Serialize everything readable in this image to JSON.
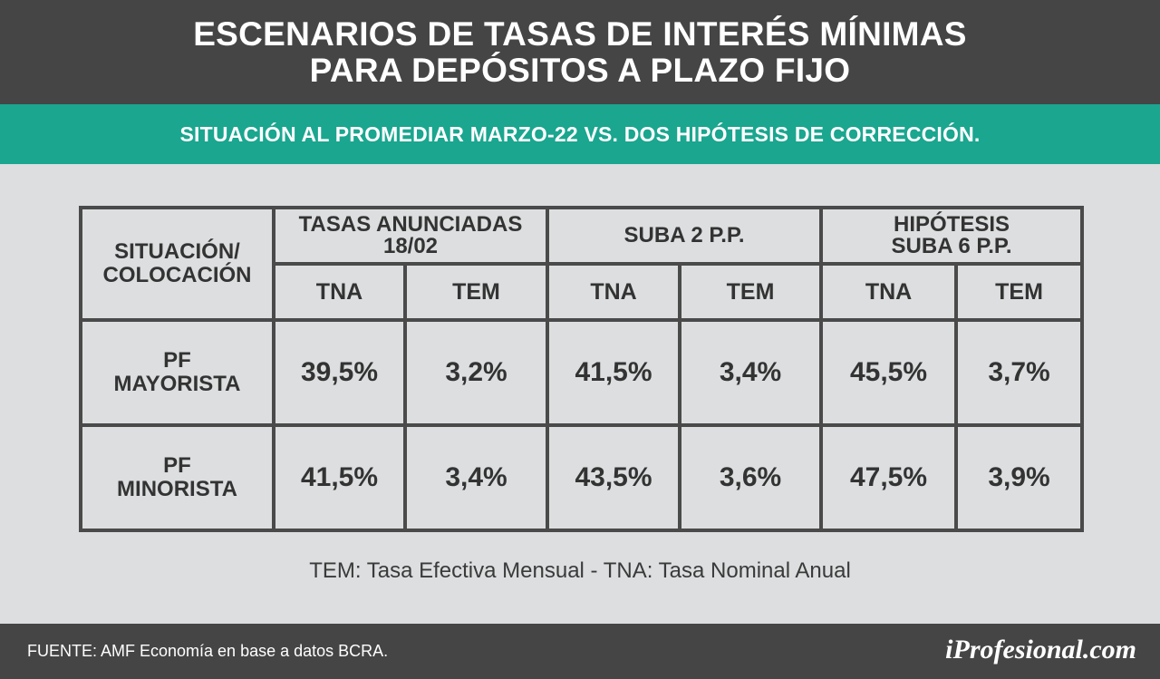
{
  "header": {
    "title_line1": "ESCENARIOS DE TASAS DE INTERÉS MÍNIMAS",
    "title_line2": "PARA DEPÓSITOS A PLAZO FIJO"
  },
  "subheader": {
    "text": "SITUACIÓN AL PROMEDIAR MARZO-22 VS. DOS HIPÓTESIS DE CORRECCIÓN."
  },
  "table": {
    "corner_line1": "SITUACIÓN/",
    "corner_line2": "COLOCACIÓN",
    "groups": [
      {
        "line1": "TASAS ANUNCIADAS",
        "line2": "18/02"
      },
      {
        "line1": "SUBA 2 P.P.",
        "line2": ""
      },
      {
        "line1": "HIPÓTESIS",
        "line2": "SUBA 6 P.P."
      }
    ],
    "subheaders": [
      "TNA",
      "TEM",
      "TNA",
      "TEM",
      "TNA",
      "TEM"
    ],
    "rows": [
      {
        "label_line1": "PF",
        "label_line2": "MAYORISTA",
        "values": [
          "39,5%",
          "3,2%",
          "41,5%",
          "3,4%",
          "45,5%",
          "3,7%"
        ]
      },
      {
        "label_line1": "PF",
        "label_line2": "MINORISTA",
        "values": [
          "41,5%",
          "3,4%",
          "43,5%",
          "3,6%",
          "47,5%",
          "3,9%"
        ]
      }
    ]
  },
  "legend": "TEM: Tasa Efectiva Mensual  -  TNA: Tasa Nominal Anual",
  "footer": {
    "source": "FUENTE: AMF Economía en base a datos BCRA.",
    "brand": "iProfesional.com"
  },
  "colors": {
    "header_bg": "#454545",
    "accent": "#1aa68f",
    "page_bg": "#dcdedf",
    "grid": "#4a4a4a"
  }
}
